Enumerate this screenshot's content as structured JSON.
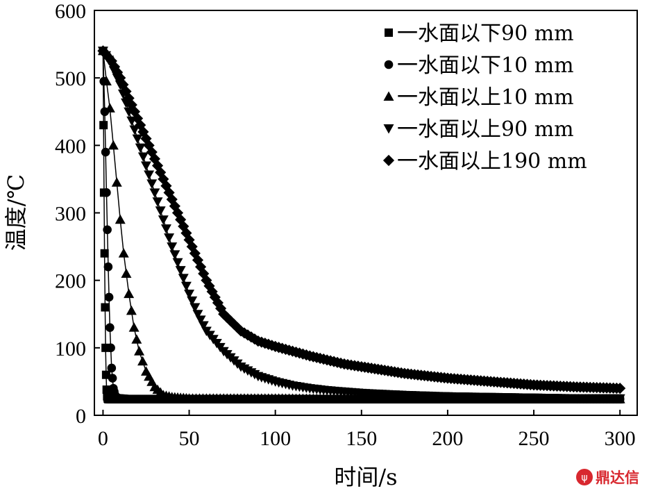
{
  "chart_data": {
    "type": "line",
    "xlabel": "时间/s",
    "ylabel": "温度/℃",
    "xlim": [
      -5,
      310
    ],
    "ylim": [
      0,
      600
    ],
    "xticks": [
      0,
      50,
      100,
      150,
      200,
      250,
      300
    ],
    "yticks": [
      0,
      100,
      200,
      300,
      400,
      500,
      600
    ],
    "grid": false,
    "legend_position": "top-right",
    "series": [
      {
        "name": "一水面以下90 mm",
        "marker": "square",
        "x": [
          0,
          0.3,
          0.6,
          0.9,
          1.2,
          1.5,
          1.8,
          2.1,
          2.4,
          2.7,
          3,
          4,
          6,
          10,
          20,
          40,
          60,
          100,
          150,
          200,
          250,
          300
        ],
        "y": [
          540,
          430,
          330,
          240,
          160,
          100,
          60,
          38,
          28,
          25,
          24,
          24,
          24,
          24,
          24,
          24,
          24,
          24,
          24,
          24,
          24,
          24
        ]
      },
      {
        "name": "一水面以下10 mm",
        "marker": "circle",
        "x": [
          0,
          1,
          2,
          3,
          4,
          5,
          6,
          7,
          8,
          10,
          15,
          20,
          40,
          60,
          100,
          150,
          200,
          250,
          300
        ],
        "y": [
          540,
          450,
          330,
          220,
          130,
          70,
          40,
          30,
          26,
          25,
          24,
          24,
          24,
          24,
          24,
          24,
          24,
          24,
          24
        ]
      },
      {
        "name": "一水面以上10 mm",
        "marker": "triangle-up",
        "x": [
          0,
          2,
          4,
          6,
          8,
          10,
          12,
          15,
          18,
          21,
          25,
          30,
          35,
          40,
          45,
          50,
          60,
          80,
          100,
          150,
          200,
          250,
          300
        ],
        "y": [
          540,
          495,
          455,
          400,
          345,
          290,
          240,
          180,
          130,
          95,
          65,
          42,
          30,
          27,
          26,
          25,
          25,
          25,
          25,
          24,
          24,
          24,
          24
        ]
      },
      {
        "name": "一水面以上90 mm",
        "marker": "triangle-down",
        "x": [
          0,
          5,
          10,
          15,
          20,
          25,
          30,
          35,
          40,
          45,
          50,
          55,
          60,
          70,
          80,
          90,
          100,
          110,
          120,
          130,
          140,
          150,
          175,
          200,
          225,
          250,
          275,
          300
        ],
        "y": [
          540,
          520,
          490,
          450,
          410,
          370,
          330,
          290,
          250,
          215,
          180,
          150,
          125,
          95,
          72,
          58,
          50,
          44,
          40,
          37,
          35,
          33,
          30,
          28,
          27,
          26,
          25,
          25
        ]
      },
      {
        "name": "一水面以上190 mm",
        "marker": "diamond",
        "x": [
          0,
          5,
          10,
          15,
          20,
          25,
          30,
          35,
          40,
          45,
          50,
          55,
          60,
          65,
          70,
          80,
          90,
          100,
          110,
          120,
          130,
          140,
          150,
          175,
          200,
          225,
          250,
          275,
          300
        ],
        "y": [
          540,
          525,
          500,
          470,
          440,
          410,
          380,
          350,
          320,
          290,
          260,
          230,
          200,
          175,
          150,
          125,
          110,
          102,
          95,
          88,
          82,
          76,
          72,
          62,
          55,
          50,
          45,
          42,
          40
        ]
      }
    ]
  },
  "watermark": {
    "text": "鼎达信",
    "color": "#d8282f"
  }
}
